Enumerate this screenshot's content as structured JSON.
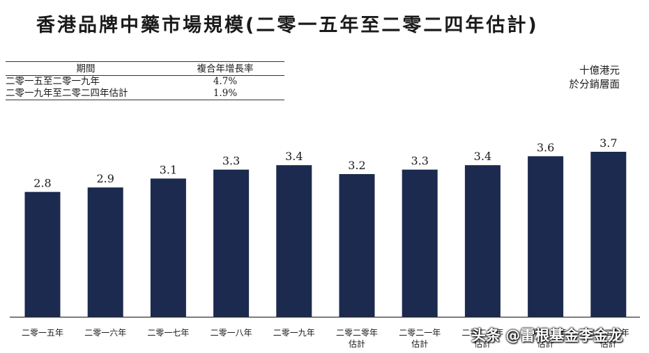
{
  "title": "香港品牌中藥市場規模(二零一五年至二零二四年估計)",
  "cagr_table": {
    "headers": [
      "期間",
      "複合年增長率"
    ],
    "rows": [
      {
        "period": "二零一五至二零一九年",
        "rate": "4.7%"
      },
      {
        "period": "二零一九年至二零二四年估計",
        "rate": "1.9%"
      }
    ]
  },
  "unit_lines": [
    "十億港元",
    "於分銷層面"
  ],
  "watermark": "头条 @雷根基金李金龙",
  "chart_data": {
    "type": "bar",
    "categories": [
      [
        "二零一五年"
      ],
      [
        "二零一六年"
      ],
      [
        "二零一七年"
      ],
      [
        "二零一八年"
      ],
      [
        "二零一九年"
      ],
      [
        "二零二零年",
        "估計"
      ],
      [
        "二零二一年",
        "估計"
      ],
      [
        "二零二二年",
        "估計"
      ],
      [
        "二零二三年",
        "估計"
      ],
      [
        "二零二四年",
        "估計"
      ]
    ],
    "values": [
      2.8,
      2.9,
      3.1,
      3.3,
      3.4,
      3.2,
      3.3,
      3.4,
      3.6,
      3.7
    ],
    "data_labels": [
      "2.8",
      "2.9",
      "3.1",
      "3.3",
      "3.4",
      "3.2",
      "3.3",
      "3.4",
      "3.6",
      "3.7"
    ],
    "ylim": [
      0,
      3.7
    ],
    "bar_color": "#1b2a4e",
    "grid": false,
    "legend": false
  }
}
